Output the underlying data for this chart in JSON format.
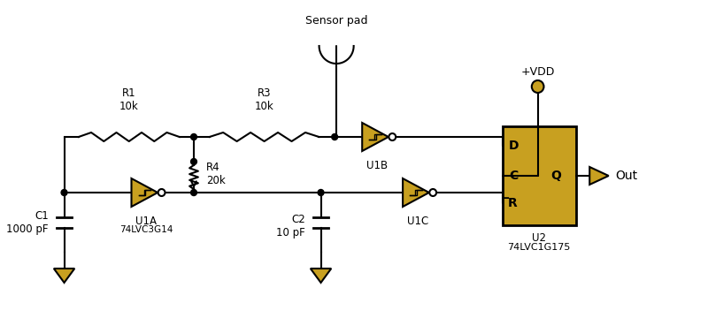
{
  "bg_color": "#ffffff",
  "line_color": "#000000",
  "component_color": "#c8a020",
  "component_edge": "#000000",
  "dot_color": "#000000",
  "ground_color": "#c8a020",
  "vdd_color": "#c8a020",
  "out_color": "#c8a020",
  "labels": {
    "sensor": "Sensor pad",
    "vdd": "+VDD",
    "out": "Out",
    "R1": "R1\n10k",
    "R3": "R3\n10k",
    "R4": "R4\n20k",
    "C1": "C1\n1000 pF",
    "C2": "C2\n10 pF",
    "U1A": "U1A",
    "U1A_sub": "74LVC3G14",
    "U1B": "U1B",
    "U1C": "U1C",
    "U2": "U2",
    "U2_sub": "74LVC1G175",
    "D": "D",
    "C": "C",
    "Rbar": "̅R",
    "Q": "Q"
  }
}
